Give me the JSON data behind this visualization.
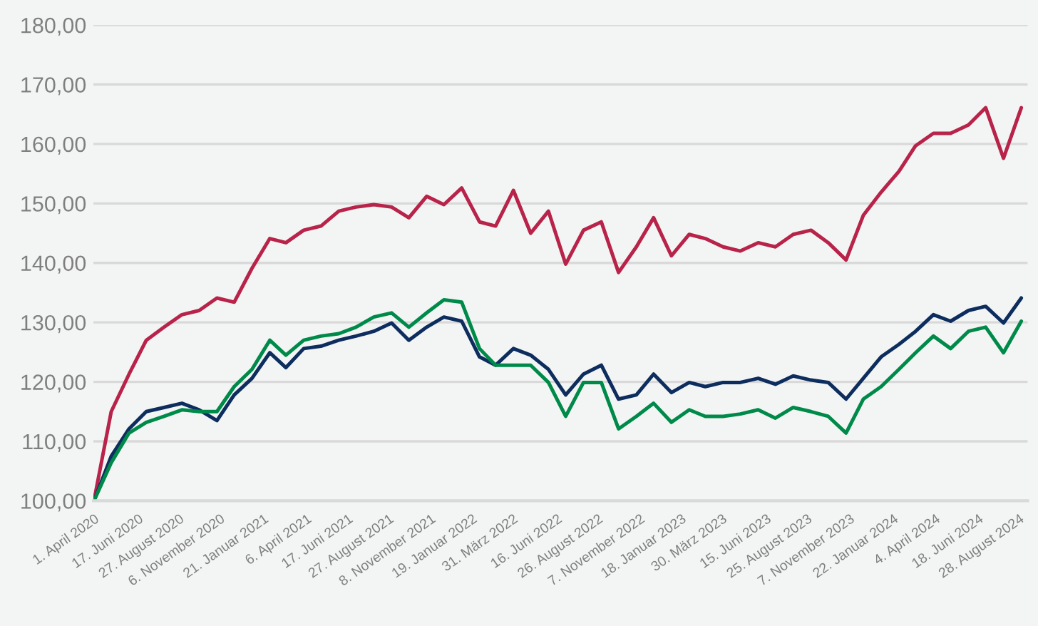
{
  "chart_data": {
    "type": "line",
    "x": [
      "2020-04-01",
      "2020-05-01",
      "2020-06-01",
      "2020-07-01",
      "2020-08-01",
      "2020-09-01",
      "2020-10-01",
      "2020-11-01",
      "2020-12-01",
      "2021-01-01",
      "2021-02-01",
      "2021-03-01",
      "2021-04-01",
      "2021-05-01",
      "2021-06-01",
      "2021-07-01",
      "2021-08-01",
      "2021-09-01",
      "2021-10-01",
      "2021-11-01",
      "2021-12-01",
      "2022-01-01",
      "2022-02-01",
      "2022-03-01",
      "2022-04-01",
      "2022-05-01",
      "2022-06-01",
      "2022-07-01",
      "2022-08-01",
      "2022-09-01",
      "2022-10-01",
      "2022-11-01",
      "2022-12-01",
      "2023-01-01",
      "2023-02-01",
      "2023-03-01",
      "2023-04-01",
      "2023-05-01",
      "2023-06-01",
      "2023-07-01",
      "2023-08-01",
      "2023-09-01",
      "2023-10-01",
      "2023-11-01",
      "2023-12-01",
      "2024-01-01",
      "2024-02-01",
      "2024-03-01",
      "2024-04-01",
      "2024-05-01",
      "2024-06-01",
      "2024-07-01",
      "2024-08-01",
      "2024-09-01"
    ],
    "series": [
      {
        "color": "#b8234a",
        "values": [
          100.0,
          115.0,
          121.3,
          127.0,
          129.2,
          131.3,
          132.0,
          134.1,
          133.4,
          139.1,
          144.1,
          143.4,
          145.5,
          146.2,
          148.7,
          149.4,
          149.8,
          149.4,
          147.6,
          151.2,
          149.8,
          152.6,
          146.9,
          146.2,
          152.2,
          145.0,
          148.7,
          139.8,
          145.5,
          146.9,
          138.4,
          142.7,
          147.6,
          141.2,
          144.8,
          144.1,
          142.7,
          142.0,
          143.4,
          142.7,
          144.8,
          145.5,
          143.4,
          140.5,
          148.0,
          151.9,
          155.4,
          159.7,
          161.8,
          161.8,
          163.2,
          166.1,
          157.6,
          166.1
        ]
      },
      {
        "color": "#0d2d5e",
        "values": [
          100.0,
          107.5,
          112.1,
          115.0,
          115.7,
          116.4,
          115.3,
          113.5,
          117.8,
          120.6,
          124.9,
          122.4,
          125.6,
          126.0,
          127.0,
          127.7,
          128.5,
          129.9,
          127.0,
          129.2,
          130.9,
          130.2,
          124.2,
          122.8,
          125.6,
          124.5,
          122.1,
          117.8,
          121.3,
          122.8,
          117.1,
          117.8,
          121.3,
          118.2,
          119.9,
          119.2,
          119.9,
          119.9,
          120.6,
          119.6,
          121.0,
          120.3,
          119.9,
          117.1,
          120.6,
          124.2,
          126.3,
          128.5,
          131.3,
          130.2,
          132.0,
          132.7,
          129.9,
          134.1
        ]
      },
      {
        "color": "#008a4a",
        "values": [
          100.0,
          106.4,
          111.4,
          113.2,
          114.2,
          115.3,
          115.0,
          115.0,
          119.2,
          122.1,
          127.0,
          124.5,
          127.0,
          127.7,
          128.1,
          129.2,
          130.9,
          131.6,
          129.2,
          131.6,
          133.8,
          133.4,
          125.6,
          122.8,
          122.8,
          122.8,
          119.9,
          114.2,
          119.9,
          119.9,
          112.1,
          114.2,
          116.4,
          113.2,
          115.3,
          114.2,
          114.2,
          114.6,
          115.3,
          113.9,
          115.7,
          115.0,
          114.2,
          111.4,
          117.1,
          119.2,
          122.1,
          124.9,
          127.7,
          125.6,
          128.5,
          129.2,
          124.9,
          130.2
        ]
      }
    ],
    "xlim": [
      "2020-03-31",
      "2024-09-12"
    ],
    "xticks": [
      {
        "value": "2020-04-01",
        "label": "1. April 2020"
      },
      {
        "value": "2020-06-17",
        "label": "17. Juni 2020"
      },
      {
        "value": "2020-08-27",
        "label": "27. August 2020"
      },
      {
        "value": "2020-11-06",
        "label": "6. November 2020"
      },
      {
        "value": "2021-01-21",
        "label": "21. Januar 2021"
      },
      {
        "value": "2021-04-06",
        "label": "6. April 2021"
      },
      {
        "value": "2021-06-17",
        "label": "17. Juni 2021"
      },
      {
        "value": "2021-08-27",
        "label": "27. August 2021"
      },
      {
        "value": "2021-11-08",
        "label": "8. November 2021"
      },
      {
        "value": "2022-01-19",
        "label": "19. Januar 2022"
      },
      {
        "value": "2022-03-31",
        "label": "31. März 2022"
      },
      {
        "value": "2022-06-16",
        "label": "16. Juni 2022"
      },
      {
        "value": "2022-08-26",
        "label": "26. August 2022"
      },
      {
        "value": "2022-11-07",
        "label": "7. November 2022"
      },
      {
        "value": "2023-01-18",
        "label": "18. Januar 2023"
      },
      {
        "value": "2023-03-30",
        "label": "30. März 2023"
      },
      {
        "value": "2023-06-15",
        "label": "15. Juni 2023"
      },
      {
        "value": "2023-08-25",
        "label": "25. August 2023"
      },
      {
        "value": "2023-11-07",
        "label": "7. November 2023"
      },
      {
        "value": "2024-01-22",
        "label": "22. Januar 2024"
      },
      {
        "value": "2024-04-04",
        "label": "4. April 2024"
      },
      {
        "value": "2024-06-18",
        "label": "18. Juni 2024"
      },
      {
        "value": "2024-08-28",
        "label": "28. August 2024"
      }
    ],
    "ylim": [
      100,
      180
    ],
    "yticks": [
      {
        "value": 100,
        "label": "100,00"
      },
      {
        "value": 110,
        "label": "110,00"
      },
      {
        "value": 120,
        "label": "120,00"
      },
      {
        "value": 130,
        "label": "130,00"
      },
      {
        "value": 140,
        "label": "140,00"
      },
      {
        "value": 150,
        "label": "150,00"
      },
      {
        "value": 160,
        "label": "160,00"
      },
      {
        "value": 170,
        "label": "170,00"
      },
      {
        "value": 180,
        "label": "180,00"
      }
    ],
    "grid": "y",
    "marker": "none",
    "line_style": "solid"
  }
}
